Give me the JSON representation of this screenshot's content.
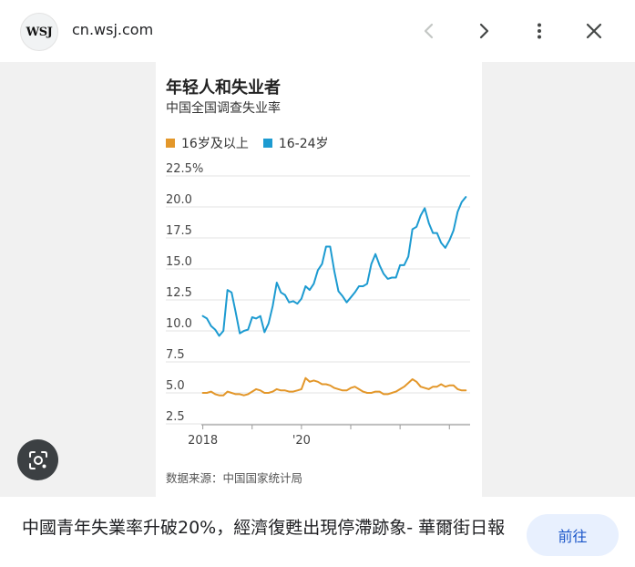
{
  "header": {
    "logo_text": "WSJ",
    "domain": "cn.wsj.com",
    "icons": [
      "chevron-left-icon",
      "chevron-right-icon",
      "more-vert-icon",
      "close-icon"
    ]
  },
  "chart": {
    "title": "年轻人和失业者",
    "subtitle": "中国全国调查失业率",
    "source": "数据来源：中国国家统计局"
  },
  "chart_data": {
    "type": "line",
    "title": "年轻人和失业者",
    "subtitle": "中国全国调查失业率",
    "xlabel": "",
    "ylabel": "",
    "ylim": [
      2.5,
      22.5
    ],
    "y_ticks": [
      "2.5",
      "5.0",
      "7.5",
      "10.0",
      "12.5",
      "15.0",
      "17.5",
      "20.0",
      "22.5%"
    ],
    "y_tick_values": [
      2.5,
      5.0,
      7.5,
      10.0,
      12.5,
      15.0,
      17.5,
      20.0,
      22.5
    ],
    "x_ticks": [
      "2018",
      "'20"
    ],
    "x_tick_values": [
      2018.0,
      2020.0
    ],
    "grid": true,
    "legend_position": "top-left",
    "series": [
      {
        "name": "16岁及以上",
        "color": "#e3972a",
        "x": [
          2018.0,
          2018.083,
          2018.167,
          2018.25,
          2018.333,
          2018.417,
          2018.5,
          2018.583,
          2018.667,
          2018.75,
          2018.833,
          2018.917,
          2019.0,
          2019.083,
          2019.167,
          2019.25,
          2019.333,
          2019.417,
          2019.5,
          2019.583,
          2019.667,
          2019.75,
          2019.833,
          2019.917,
          2020.0,
          2020.083,
          2020.167,
          2020.25,
          2020.333,
          2020.417,
          2020.5,
          2020.583,
          2020.667,
          2020.75,
          2020.833,
          2020.917,
          2021.0,
          2021.083,
          2021.167,
          2021.25,
          2021.333,
          2021.417,
          2021.5,
          2021.583,
          2021.667,
          2021.75,
          2021.833,
          2021.917,
          2022.0,
          2022.083,
          2022.167,
          2022.25,
          2022.333,
          2022.417,
          2022.5,
          2022.583,
          2022.667,
          2022.75,
          2022.833,
          2022.917,
          2023.0,
          2023.083,
          2023.167,
          2023.25,
          2023.333
        ],
        "values": [
          5.0,
          5.0,
          5.1,
          4.9,
          4.8,
          4.8,
          5.1,
          5.0,
          4.9,
          4.9,
          4.8,
          4.9,
          5.1,
          5.3,
          5.2,
          5.0,
          5.0,
          5.1,
          5.3,
          5.2,
          5.2,
          5.1,
          5.1,
          5.2,
          5.3,
          6.2,
          5.9,
          6.0,
          5.9,
          5.7,
          5.7,
          5.6,
          5.4,
          5.3,
          5.2,
          5.2,
          5.4,
          5.5,
          5.3,
          5.1,
          5.0,
          5.0,
          5.1,
          5.1,
          4.9,
          4.9,
          5.0,
          5.1,
          5.3,
          5.5,
          5.8,
          6.1,
          5.9,
          5.5,
          5.4,
          5.3,
          5.5,
          5.5,
          5.7,
          5.5,
          5.6,
          5.6,
          5.3,
          5.2,
          5.2
        ]
      },
      {
        "name": "16-24岁",
        "color": "#1d9bd1",
        "x": [
          2018.0,
          2018.083,
          2018.167,
          2018.25,
          2018.333,
          2018.417,
          2018.5,
          2018.583,
          2018.667,
          2018.75,
          2018.833,
          2018.917,
          2019.0,
          2019.083,
          2019.167,
          2019.25,
          2019.333,
          2019.417,
          2019.5,
          2019.583,
          2019.667,
          2019.75,
          2019.833,
          2019.917,
          2020.0,
          2020.083,
          2020.167,
          2020.25,
          2020.333,
          2020.417,
          2020.5,
          2020.583,
          2020.667,
          2020.75,
          2020.833,
          2020.917,
          2021.0,
          2021.083,
          2021.167,
          2021.25,
          2021.333,
          2021.417,
          2021.5,
          2021.583,
          2021.667,
          2021.75,
          2021.833,
          2021.917,
          2022.0,
          2022.083,
          2022.167,
          2022.25,
          2022.333,
          2022.417,
          2022.5,
          2022.583,
          2022.667,
          2022.75,
          2022.833,
          2022.917,
          2023.0,
          2023.083,
          2023.167,
          2023.25,
          2023.333
        ],
        "values": [
          11.2,
          11.0,
          10.4,
          10.1,
          9.6,
          10.0,
          13.3,
          13.1,
          11.5,
          9.8,
          10.0,
          10.1,
          11.1,
          11.0,
          11.2,
          9.9,
          10.6,
          12.0,
          13.9,
          13.1,
          12.9,
          12.3,
          12.4,
          12.2,
          12.6,
          13.6,
          13.3,
          13.8,
          14.9,
          15.4,
          16.8,
          16.8,
          14.8,
          13.2,
          12.8,
          12.3,
          12.7,
          13.1,
          13.6,
          13.6,
          13.8,
          15.4,
          16.2,
          15.3,
          14.6,
          14.2,
          14.3,
          14.3,
          15.3,
          15.3,
          16.0,
          18.2,
          18.4,
          19.3,
          19.9,
          18.7,
          17.9,
          17.9,
          17.1,
          16.7,
          17.3,
          18.1,
          19.6,
          20.4,
          20.8
        ]
      }
    ]
  },
  "lens": {
    "icon": "google-lens-icon"
  },
  "footer": {
    "page_title": "中國青年失業率升破20%，經濟復甦出現停滯跡象- 華爾街日報",
    "visit_label": "前往"
  }
}
